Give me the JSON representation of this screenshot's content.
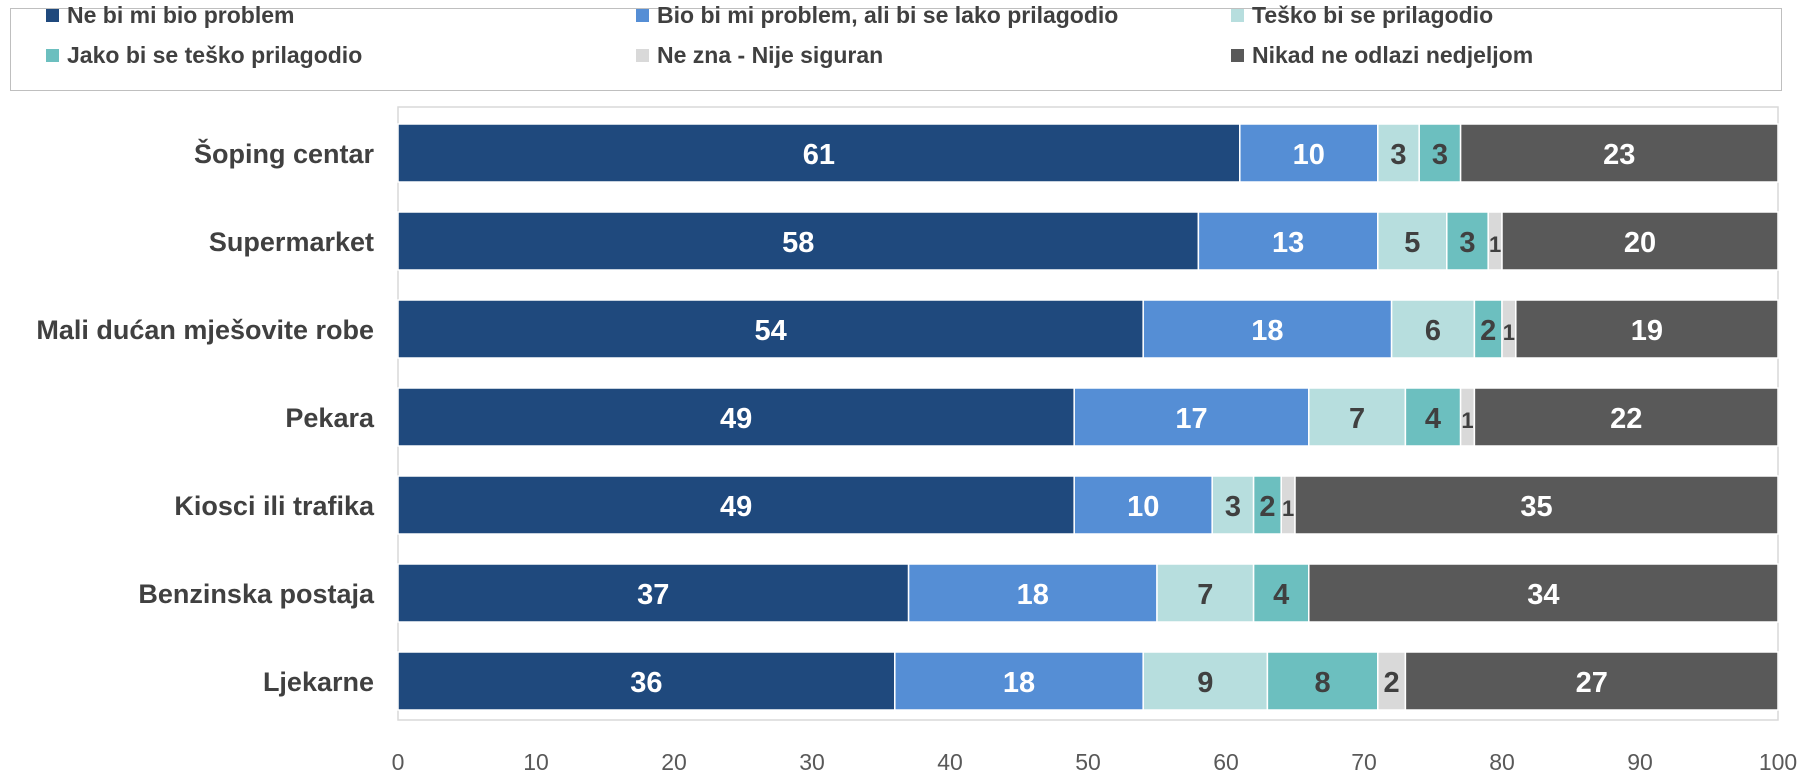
{
  "chart_data": {
    "type": "bar",
    "orientation": "horizontal",
    "stacked": true,
    "categories": [
      "Šoping centar",
      "Supermarket",
      "Mali dućan mješovite robe",
      "Pekara",
      "Kiosci ili trafika",
      "Benzinska postaja",
      "Ljekarne"
    ],
    "series": [
      {
        "name": "Ne bi mi bio problem",
        "color": "#1f497d",
        "label_color": "#ffffff",
        "values": [
          61,
          58,
          54,
          49,
          49,
          37,
          36
        ],
        "labels": [
          "61",
          "58",
          "54",
          "49",
          "49",
          "37",
          "36"
        ]
      },
      {
        "name": "Bio bi mi problem, ali bi se lako prilagodio",
        "color": "#558ed5",
        "label_color": "#ffffff",
        "values": [
          10,
          13,
          18,
          17,
          10,
          18,
          18
        ],
        "labels": [
          "10",
          "13",
          "18",
          "17",
          "10",
          "18",
          "18"
        ]
      },
      {
        "name": "Teško bi se prilagodio",
        "color": "#b7dede",
        "label_color": "#404040",
        "values": [
          3,
          5,
          6,
          7,
          3,
          7,
          9
        ],
        "labels": [
          "3",
          "5",
          "6",
          "7",
          "3",
          "7",
          "9"
        ]
      },
      {
        "name": "Jako bi se teško prilagodio",
        "color": "#6cbfbf",
        "label_color": "#404040",
        "values": [
          3,
          3,
          2,
          4,
          2,
          4,
          8
        ],
        "labels": [
          "3",
          "3",
          "2",
          "4",
          "2",
          "4",
          "8"
        ]
      },
      {
        "name": "Ne zna - Nije siguran",
        "color": "#d9d9d9",
        "label_color": "#404040",
        "values": [
          0,
          1,
          1,
          1,
          1,
          0,
          2
        ],
        "labels": [
          "",
          "1",
          "1",
          "1",
          "1",
          "",
          "2"
        ]
      },
      {
        "name": "Nikad ne odlazi nedjeljom",
        "color": "#595959",
        "label_color": "#ffffff",
        "values": [
          23,
          20,
          19,
          22,
          35,
          34,
          27
        ],
        "labels": [
          "23",
          "20",
          "19",
          "22",
          "35",
          "34",
          "27"
        ]
      }
    ],
    "x_ticks": [
      "0",
      "10",
      "20",
      "30",
      "40",
      "50",
      "60",
      "70",
      "80",
      "90",
      "100"
    ],
    "xlim": [
      0,
      100
    ],
    "grid": false,
    "legend_position": "top"
  }
}
